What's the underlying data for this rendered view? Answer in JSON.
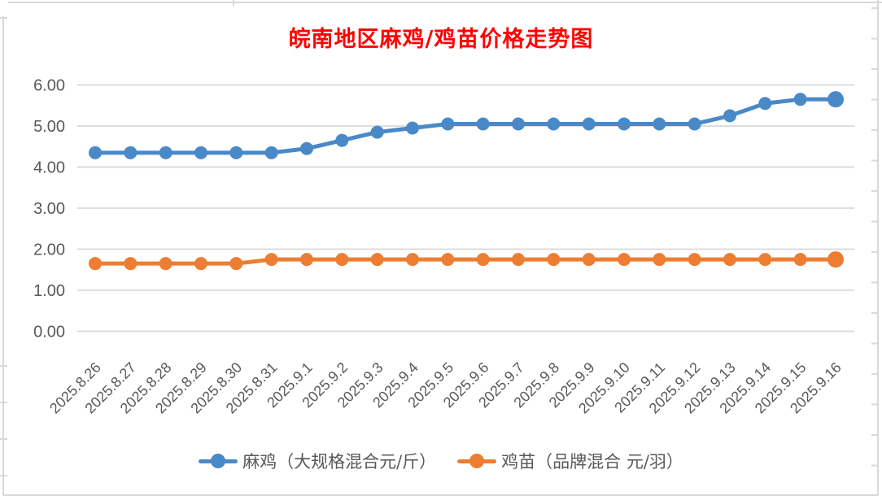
{
  "title": {
    "text": "皖南地区麻鸡/鸡苗价格走势图",
    "color": "#FF0000"
  },
  "chart_data": {
    "type": "line",
    "title": "皖南地区麻鸡/鸡苗价格走势图",
    "categories": [
      "2025.8.26",
      "2025.8.27",
      "2025.8.28",
      "2025.8.29",
      "2025.8.30",
      "2025.8.31",
      "2025.9.1",
      "2025.9.2",
      "2025.9.3",
      "2025.9.4",
      "2025.9.5",
      "2025.9.6",
      "2025.9.7",
      "2025.9.8",
      "2025.9.9",
      "2025.9.10",
      "2025.9.11",
      "2025.9.12",
      "2025.9.13",
      "2025.9.14",
      "2025.9.15",
      "2025.9.16"
    ],
    "series": [
      {
        "name": "麻鸡（大规格混合元/斤）",
        "color": "#4A89C8",
        "values": [
          4.35,
          4.35,
          4.35,
          4.35,
          4.35,
          4.35,
          4.45,
          4.65,
          4.85,
          4.95,
          5.05,
          5.05,
          5.05,
          5.05,
          5.05,
          5.05,
          5.05,
          5.05,
          5.25,
          5.55,
          5.65,
          5.65
        ]
      },
      {
        "name": "鸡苗（品牌混合 元/羽）",
        "color": "#ED7D31",
        "values": [
          1.65,
          1.65,
          1.65,
          1.65,
          1.65,
          1.75,
          1.75,
          1.75,
          1.75,
          1.75,
          1.75,
          1.75,
          1.75,
          1.75,
          1.75,
          1.75,
          1.75,
          1.75,
          1.75,
          1.75,
          1.75,
          1.75
        ]
      }
    ],
    "ylim": [
      0,
      6
    ],
    "ytick_step": 1,
    "ytick_labels": [
      "0.00",
      "1.00",
      "2.00",
      "3.00",
      "4.00",
      "5.00",
      "6.00"
    ],
    "xlabel": "",
    "ylabel": "",
    "x_label_rotation": 45,
    "grid": "horizontal",
    "legend_position": "bottom",
    "colors": {
      "title": "#FF0000",
      "axis_labels": "#595959",
      "gridline": "#D9D9D9",
      "frame_border": "#D9D9D9",
      "background": "#FFFFFF"
    }
  }
}
